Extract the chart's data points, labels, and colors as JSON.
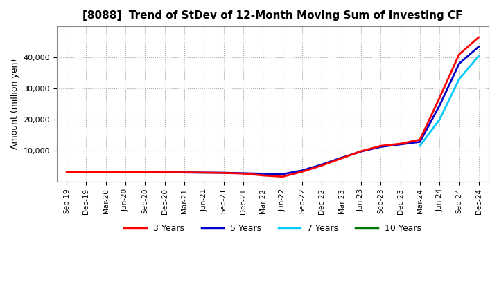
{
  "title": "[8088]  Trend of StDev of 12-Month Moving Sum of Investing CF",
  "ylabel": "Amount (million yen)",
  "background_color": "#ffffff",
  "plot_bg_color": "#ffffff",
  "grid_color": "#aaaaaa",
  "x_labels": [
    "Sep-19",
    "Dec-19",
    "Mar-20",
    "Jun-20",
    "Sep-20",
    "Dec-20",
    "Mar-21",
    "Jun-21",
    "Sep-21",
    "Dec-21",
    "Mar-22",
    "Jun-22",
    "Sep-22",
    "Dec-22",
    "Mar-23",
    "Jun-23",
    "Sep-23",
    "Dec-23",
    "Mar-24",
    "Jun-24",
    "Sep-24",
    "Dec-24"
  ],
  "series": {
    "3 Years": {
      "color": "#ff0000",
      "values": [
        3100,
        3100,
        3050,
        3050,
        3000,
        3000,
        2950,
        2900,
        2800,
        2600,
        2000,
        1600,
        3200,
        5200,
        7500,
        9800,
        11500,
        12200,
        13500,
        27000,
        41000,
        46500
      ]
    },
    "5 Years": {
      "color": "#0000cc",
      "values": [
        3100,
        3100,
        3050,
        3050,
        3000,
        3000,
        2950,
        2900,
        2850,
        2700,
        2550,
        2400,
        3600,
        5500,
        7700,
        9700,
        11200,
        12000,
        12800,
        24500,
        38000,
        43500
      ]
    },
    "7 Years": {
      "color": "#00ccff",
      "values": [
        null,
        null,
        null,
        null,
        null,
        null,
        null,
        null,
        null,
        null,
        null,
        null,
        null,
        null,
        null,
        null,
        null,
        null,
        11500,
        20000,
        33000,
        40500
      ]
    },
    "10 Years": {
      "color": "#007700",
      "values": [
        null,
        null,
        null,
        null,
        null,
        null,
        null,
        null,
        null,
        null,
        null,
        null,
        null,
        null,
        null,
        null,
        null,
        null,
        null,
        null,
        null,
        null
      ]
    }
  },
  "ylim": [
    0,
    50000
  ],
  "yticks": [
    10000,
    20000,
    30000,
    40000
  ],
  "legend_entries": [
    "3 Years",
    "5 Years",
    "7 Years",
    "10 Years"
  ],
  "legend_colors": [
    "#ff0000",
    "#0000cc",
    "#00ccff",
    "#007700"
  ]
}
